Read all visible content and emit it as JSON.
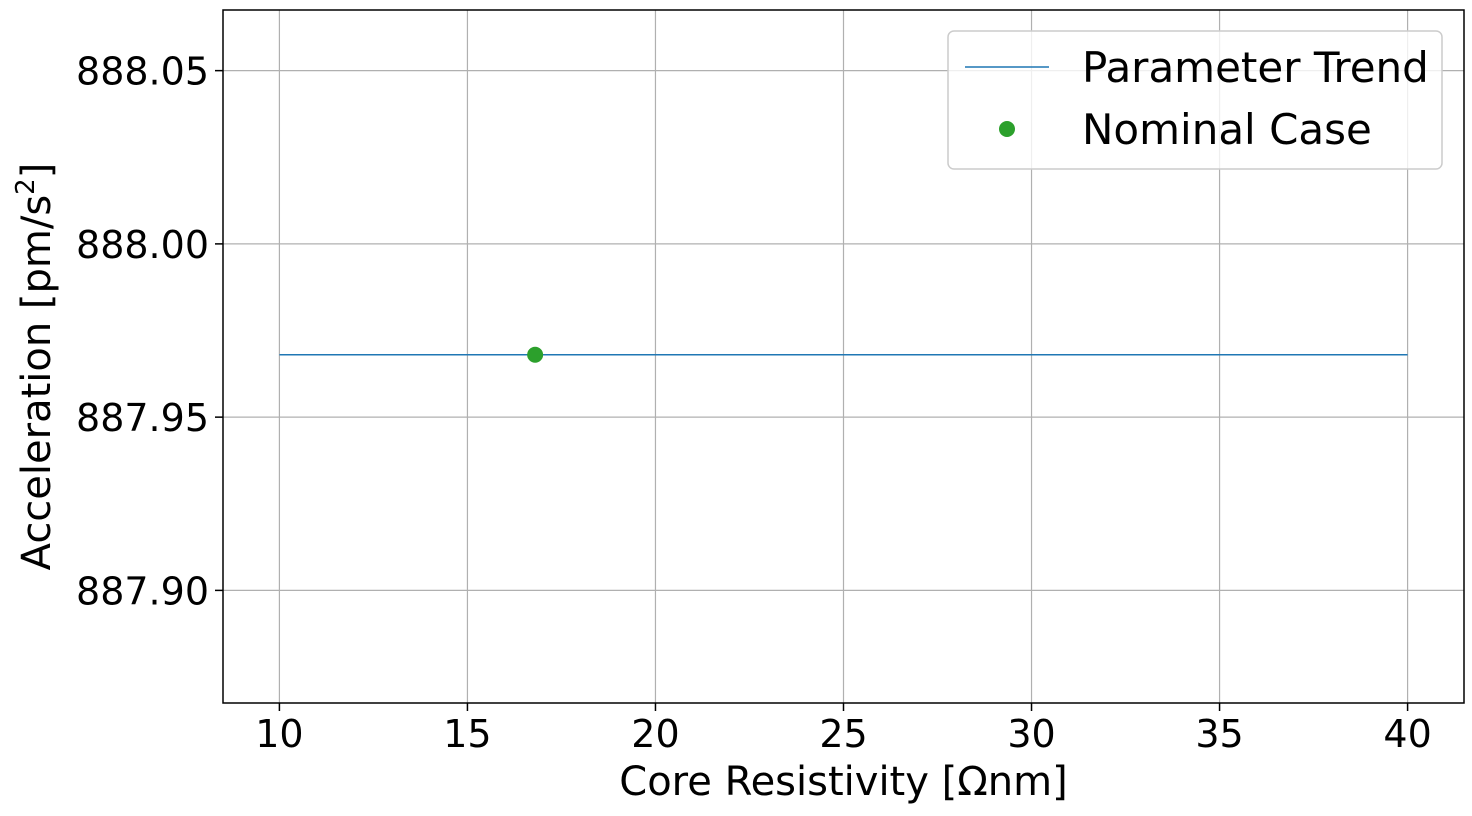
{
  "chart_data": {
    "type": "line",
    "title": "",
    "xlabel": "Core Resistivity [Ωnm]",
    "ylabel_main": "Acceleration [pm/s",
    "ylabel_sup": "2",
    "ylabel_end": "]",
    "xlim": [
      8.5,
      41.5
    ],
    "ylim": [
      887.8675,
      888.0675
    ],
    "x_ticks": [
      10,
      15,
      20,
      25,
      30,
      35,
      40
    ],
    "x_tick_labels": [
      "10",
      "15",
      "20",
      "25",
      "30",
      "35",
      "40"
    ],
    "y_ticks": [
      887.9,
      887.95,
      888.0,
      888.05
    ],
    "y_tick_labels": [
      "887.90",
      "887.95",
      "888.00",
      "888.05"
    ],
    "grid": true,
    "legend_position": "top-right",
    "series": [
      {
        "name": "Parameter Trend",
        "kind": "line",
        "color": "#1f77b4",
        "x": [
          10,
          40
        ],
        "y": [
          887.968,
          887.968
        ]
      },
      {
        "name": "Nominal Case",
        "kind": "marker",
        "color": "#2ca02c",
        "x": [
          16.8
        ],
        "y": [
          887.968
        ]
      }
    ]
  }
}
